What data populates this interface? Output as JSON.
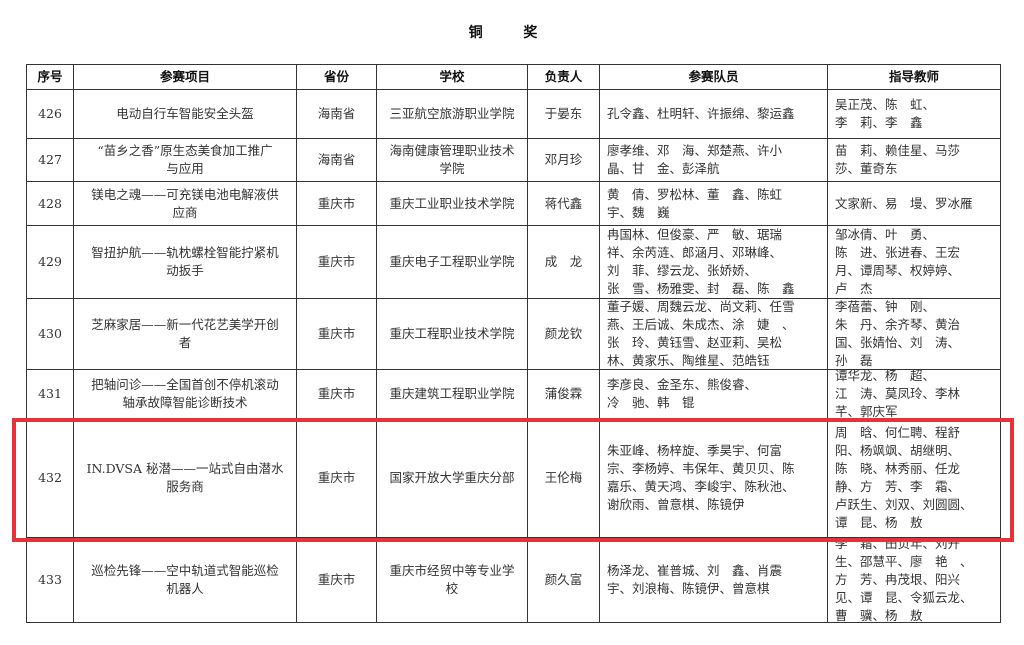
{
  "title": "铜  奖",
  "highlight_color": "#e8323a",
  "columns": [
    "序号",
    "参赛项目",
    "省份",
    "学校",
    "负责人",
    "参赛队员",
    "指导教师"
  ],
  "rows": [
    {
      "no": "426",
      "project": "电动自行车智能安全头盔",
      "province": "海南省",
      "school": "三亚航空旅游职业学院",
      "leader": "于晏东",
      "members": "孔令鑫、杜明轩、许振绵、黎运鑫",
      "teachers": "吴正茂、陈　虹、\n李　莉、李　鑫"
    },
    {
      "no": "427",
      "project": "“苗乡之香”原生态美食加工推广\n与应用",
      "province": "海南省",
      "school": "海南健康管理职业技术\n学院",
      "leader": "邓月珍",
      "members": "廖孝维、邓　海、郑楚燕、许小\n晶、甘　金、彭泽航",
      "teachers": "苗　莉、赖佳星、马莎\n莎、董奇东"
    },
    {
      "no": "428",
      "project": "镁电之魂——可充镁电池电解液供\n应商",
      "province": "重庆市",
      "school": "重庆工业职业技术学院",
      "leader": "蒋代鑫",
      "members": "黄　倩、罗松林、董　鑫、陈虹\n宇、魏　巍",
      "teachers": "文家新、易　墁、罗冰雁"
    },
    {
      "no": "429",
      "project": "智扭护航——轨枕螺栓智能拧紧机\n动扳手",
      "province": "重庆市",
      "school": "重庆电子工程职业学院",
      "leader": "成　龙",
      "members": "冉国林、但俊豪、严　敏、琚瑞\n祥、余芮涟、郎涵月、邓琳峰、\n刘　菲、缪云龙、张娇娇、\n张　雪、杨雅雯、封　磊、陈　鑫",
      "teachers": "邹冰倩、叶　勇、\n陈　进、张进春、王宏\n月、谭周琴、权婷婷、\n卢　杰"
    },
    {
      "no": "430",
      "project": "芝麻家居——新一代花艺美学开创\n者",
      "province": "重庆市",
      "school": "重庆工程职业技术学院",
      "leader": "颜龙钦",
      "members": "董子媛、周魏云龙、尚文莉、任雪\n燕、王后诚、朱成杰、涂　婕　、\n张　玲、黄钰雪、赵亚莉、吴松\n林、黄家乐、陶维星、范皓钰",
      "teachers": "李蓓蕾、钟　刚、\n朱　丹、余齐琴、黄治\n国、张婧怡、刘　涛、\n孙　磊"
    },
    {
      "no": "431",
      "project": "把轴问诊——全国首创不停机滚动\n轴承故障智能诊断技术",
      "province": "重庆市",
      "school": "重庆建筑工程职业学院",
      "leader": "蒲俊霖",
      "members": "李彦良、金圣东、熊俊睿、\n冷　驰、韩　锟",
      "teachers": "谭华龙、杨　超、\n江　涛、莫凤玲、李林\n芊、郭庆军"
    },
    {
      "no": "432",
      "project": "IN.DVSA 秘潜——一站式自由潜水\n服务商",
      "province": "重庆市",
      "school": "国家开放大学重庆分部",
      "leader": "王伦梅",
      "members": "朱亚峰、杨梓旋、季昊宇、何富\n宗、李杨婷、韦保年、黄贝贝、陈\n嘉乐、黄天鸿、李峻宇、陈秋池、\n谢欣雨、曾意棋、陈镜伊",
      "teachers": "周　晗、何仁聘、程舒\n阳、杨飒飒、胡继明、\n陈　晓、林秀丽、任龙\n静、方　芳、李　霜、\n卢跃生、刘双、刘圆圆、\n谭　昆、杨　敖"
    },
    {
      "no": "433",
      "project": "巡检先锋——空中轨道式智能巡检\n机器人",
      "province": "重庆市",
      "school": "重庆市经贸中等专业学\n校",
      "leader": "颜久富",
      "members": "杨泽龙、崔普城、刘　鑫、肖震\n宇、刘浪梅、陈镜伊、曾意棋",
      "teachers": "李　霜、田贞年、刘开\n生、邵慧平、廖　艳　、\n方　芳、冉茂垠、阳兴\n见、谭　昆、令狐云龙、\n曹　骥、杨　敖"
    }
  ]
}
